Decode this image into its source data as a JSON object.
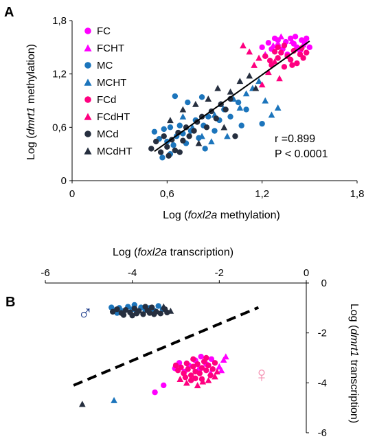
{
  "chart_data": [
    {
      "panel_label": "A",
      "type": "scatter",
      "xlabel": {
        "pre": "Log (",
        "italic": "foxl2a",
        "post": " methylation)"
      },
      "ylabel": {
        "pre": "Log (",
        "italic": "dmrt1",
        "post": " methylation)"
      },
      "xlim": [
        0,
        1.8
      ],
      "ylim": [
        0,
        1.8
      ],
      "xticks": [
        "0",
        "0,6",
        "1,2",
        "1,8"
      ],
      "yticks": [
        "0",
        "0,6",
        "1,2",
        "1,8"
      ],
      "grid": false,
      "legend_position": "top-left",
      "annotation": [
        "r =0.899",
        "P < 0.0001"
      ],
      "trendline": {
        "x": [
          0.52,
          1.5
        ],
        "y": [
          0.33,
          1.57
        ]
      },
      "series": [
        {
          "name": "FC",
          "marker": "circle",
          "color": "#FF00FF",
          "points": [
            [
              1.2,
              1.5
            ],
            [
              1.24,
              1.55
            ],
            [
              1.28,
              1.6
            ],
            [
              1.3,
              1.52
            ],
            [
              1.33,
              1.48
            ],
            [
              1.35,
              1.56
            ],
            [
              1.38,
              1.6
            ],
            [
              1.4,
              1.54
            ],
            [
              1.42,
              1.5
            ],
            [
              1.45,
              1.58
            ],
            [
              1.47,
              1.55
            ],
            [
              1.48,
              1.6
            ],
            [
              1.5,
              1.5
            ],
            [
              1.36,
              1.42
            ],
            [
              1.44,
              1.46
            ],
            [
              1.3,
              1.58
            ],
            [
              1.26,
              1.48
            ],
            [
              1.41,
              1.62
            ]
          ]
        },
        {
          "name": "FCHT",
          "marker": "triangle",
          "color": "#FF00FF",
          "points": [
            [
              1.22,
              1.42
            ],
            [
              1.27,
              1.52
            ],
            [
              1.32,
              1.62
            ],
            [
              1.39,
              1.57
            ],
            [
              1.46,
              1.53
            ]
          ]
        },
        {
          "name": "MC",
          "marker": "circle",
          "color": "#1C75BC",
          "points": [
            [
              0.52,
              0.55
            ],
            [
              0.55,
              0.47
            ],
            [
              0.58,
              0.58
            ],
            [
              0.6,
              0.44
            ],
            [
              0.62,
              0.6
            ],
            [
              0.64,
              0.4
            ],
            [
              0.66,
              0.5
            ],
            [
              0.68,
              0.62
            ],
            [
              0.7,
              0.53
            ],
            [
              0.72,
              0.42
            ],
            [
              0.75,
              0.56
            ],
            [
              0.78,
              0.68
            ],
            [
              0.8,
              0.48
            ],
            [
              0.83,
              0.62
            ],
            [
              0.86,
              0.72
            ],
            [
              0.9,
              0.56
            ],
            [
              0.93,
              0.68
            ],
            [
              0.96,
              0.8
            ],
            [
              1.0,
              0.72
            ],
            [
              1.05,
              0.88
            ],
            [
              1.1,
              0.8
            ],
            [
              0.57,
              0.26
            ],
            [
              0.62,
              0.3
            ],
            [
              0.73,
              0.88
            ],
            [
              0.65,
              0.95
            ],
            [
              0.82,
              0.94
            ],
            [
              0.84,
              0.36
            ],
            [
              1.07,
              0.62
            ],
            [
              1.2,
              0.64
            ]
          ]
        },
        {
          "name": "MCHT",
          "marker": "triangle",
          "color": "#1C75BC",
          "points": [
            [
              0.7,
              0.72
            ],
            [
              0.76,
              0.6
            ],
            [
              0.82,
              0.5
            ],
            [
              0.9,
              0.74
            ],
            [
              0.94,
              0.86
            ],
            [
              0.98,
              0.5
            ],
            [
              1.02,
              0.92
            ],
            [
              1.06,
              0.82
            ],
            [
              1.1,
              0.98
            ],
            [
              1.14,
              1.04
            ],
            [
              1.22,
              0.9
            ],
            [
              1.26,
              0.74
            ],
            [
              1.3,
              0.82
            ],
            [
              1.18,
              1.12
            ],
            [
              0.88,
              0.44
            ]
          ]
        },
        {
          "name": "FCd",
          "marker": "circle",
          "color": "#FF0080",
          "points": [
            [
              1.22,
              1.4
            ],
            [
              1.25,
              1.35
            ],
            [
              1.28,
              1.45
            ],
            [
              1.3,
              1.38
            ],
            [
              1.32,
              1.44
            ],
            [
              1.34,
              1.28
            ],
            [
              1.36,
              1.4
            ],
            [
              1.38,
              1.36
            ],
            [
              1.4,
              1.46
            ],
            [
              1.42,
              1.32
            ],
            [
              1.44,
              1.42
            ],
            [
              1.46,
              1.38
            ],
            [
              1.48,
              1.44
            ],
            [
              1.3,
              1.5
            ],
            [
              1.26,
              1.3
            ],
            [
              1.34,
              1.52
            ],
            [
              1.39,
              1.3
            ],
            [
              1.45,
              1.49
            ]
          ]
        },
        {
          "name": "FCdHT",
          "marker": "triangle",
          "color": "#FF0080",
          "points": [
            [
              1.08,
              1.52
            ],
            [
              1.12,
              1.45
            ],
            [
              1.15,
              1.3
            ],
            [
              1.18,
              1.38
            ],
            [
              1.24,
              1.22
            ],
            [
              1.28,
              1.34
            ],
            [
              1.31,
              1.15
            ],
            [
              1.2,
              1.08
            ]
          ]
        },
        {
          "name": "MCd",
          "marker": "circle",
          "color": "#262F3F",
          "points": [
            [
              0.5,
              0.36
            ],
            [
              0.53,
              0.44
            ],
            [
              0.56,
              0.32
            ],
            [
              0.58,
              0.5
            ],
            [
              0.6,
              0.38
            ],
            [
              0.63,
              0.46
            ],
            [
              0.65,
              0.34
            ],
            [
              0.67,
              0.54
            ],
            [
              0.7,
              0.45
            ],
            [
              0.72,
              0.6
            ],
            [
              0.74,
              0.5
            ],
            [
              0.77,
              0.56
            ],
            [
              0.79,
              0.66
            ],
            [
              0.82,
              0.72
            ],
            [
              0.85,
              0.6
            ],
            [
              0.88,
              0.78
            ],
            [
              0.91,
              0.7
            ],
            [
              0.94,
              0.86
            ],
            [
              0.97,
              0.8
            ],
            [
              1.0,
              0.92
            ],
            [
              0.68,
              0.32
            ],
            [
              0.61,
              0.28
            ],
            [
              1.03,
              0.5
            ]
          ]
        },
        {
          "name": "MCdHT",
          "marker": "triangle",
          "color": "#262F3F",
          "points": [
            [
              0.62,
              0.68
            ],
            [
              0.7,
              0.8
            ],
            [
              0.78,
              0.86
            ],
            [
              0.86,
              0.92
            ],
            [
              0.92,
              1.04
            ],
            [
              1.0,
              1.0
            ],
            [
              1.06,
              1.12
            ],
            [
              1.12,
              1.18
            ],
            [
              1.16,
              1.04
            ],
            [
              0.8,
              0.42
            ],
            [
              0.96,
              0.6
            ]
          ]
        }
      ]
    },
    {
      "panel_label": "B",
      "type": "scatter",
      "xlabel": {
        "pre": "Log (",
        "italic": "foxl2a",
        "post": " transcription)"
      },
      "ylabel": {
        "pre": "Log (",
        "italic": "dmrt1",
        "post": " transcription)"
      },
      "xlim": [
        -6,
        0
      ],
      "ylim": [
        -6,
        0
      ],
      "x_axis_position": "top",
      "y_axis_position": "right",
      "xticks": [
        "-6",
        "-4",
        "-2",
        "0"
      ],
      "yticks": [
        "0",
        "-2",
        "-4",
        "-6"
      ],
      "grid": false,
      "symbols": {
        "male": "♂",
        "female": "♀"
      },
      "separator_line": {
        "style": "dashed",
        "x": [
          -5.35,
          -1.1
        ],
        "y": [
          -4.1,
          -0.98
        ]
      },
      "series": [
        {
          "name": "MC",
          "marker": "circle",
          "color": "#1C75BC",
          "points": [
            [
              -4.48,
              -0.98
            ],
            [
              -4.4,
              -1.1
            ],
            [
              -4.3,
              -1.0
            ],
            [
              -4.2,
              -1.12
            ],
            [
              -4.1,
              -0.95
            ],
            [
              -4.0,
              -1.05
            ],
            [
              -3.9,
              -1.15
            ],
            [
              -3.8,
              -0.98
            ],
            [
              -3.7,
              -1.08
            ],
            [
              -3.6,
              -1.0
            ],
            [
              -3.5,
              -1.1
            ],
            [
              -3.4,
              -0.92
            ],
            [
              -3.3,
              -1.05
            ],
            [
              -4.35,
              -1.2
            ],
            [
              -3.95,
              -0.88
            ]
          ]
        },
        {
          "name": "MCd",
          "marker": "circle",
          "color": "#262F3F",
          "points": [
            [
              -4.45,
              -1.15
            ],
            [
              -4.35,
              -1.05
            ],
            [
              -4.25,
              -1.2
            ],
            [
              -4.15,
              -1.08
            ],
            [
              -4.05,
              -1.18
            ],
            [
              -3.95,
              -1.02
            ],
            [
              -3.85,
              -1.12
            ],
            [
              -3.75,
              -1.25
            ],
            [
              -3.65,
              -1.1
            ],
            [
              -3.55,
              -0.98
            ],
            [
              -3.45,
              -1.15
            ],
            [
              -3.35,
              -1.22
            ],
            [
              -3.25,
              -1.05
            ],
            [
              -3.2,
              -1.18
            ],
            [
              -4.2,
              -1.28
            ],
            [
              -3.7,
              -0.95
            ],
            [
              -3.5,
              -1.25
            ],
            [
              -4.0,
              -1.3
            ],
            [
              -3.9,
              -1.22
            ],
            [
              -3.6,
              -1.2
            ]
          ]
        },
        {
          "name": "MCdHT",
          "marker": "triangle",
          "color": "#262F3F",
          "points": [
            [
              -3.12,
              -1.12
            ],
            [
              -3.28,
              -0.95
            ],
            [
              -5.15,
              -4.85
            ]
          ]
        },
        {
          "name": "MCHT",
          "marker": "triangle",
          "color": "#1C75BC",
          "points": [
            [
              -4.42,
              -4.7
            ]
          ]
        },
        {
          "name": "FC",
          "marker": "circle",
          "color": "#FF00FF",
          "points": [
            [
              -3.48,
              -4.38
            ],
            [
              -3.28,
              -4.1
            ],
            [
              -3.02,
              -3.42
            ],
            [
              -2.92,
              -3.2
            ],
            [
              -2.8,
              -3.55
            ],
            [
              -2.7,
              -3.3
            ],
            [
              -2.55,
              -3.1
            ],
            [
              -2.45,
              -3.45
            ],
            [
              -2.3,
              -3.25
            ],
            [
              -2.18,
              -3.05
            ],
            [
              -2.42,
              -2.95
            ]
          ]
        },
        {
          "name": "FCHT",
          "marker": "triangle",
          "color": "#FF00FF",
          "points": [
            [
              -2.2,
              -3.6
            ],
            [
              -2.0,
              -3.35
            ],
            [
              -1.9,
              -3.08
            ],
            [
              -1.85,
              -2.95
            ],
            [
              -1.95,
              -3.5
            ]
          ]
        },
        {
          "name": "FCd",
          "marker": "circle",
          "color": "#FF0080",
          "points": [
            [
              -3.0,
              -3.3
            ],
            [
              -2.95,
              -3.5
            ],
            [
              -2.88,
              -3.38
            ],
            [
              -2.82,
              -3.62
            ],
            [
              -2.75,
              -3.22
            ],
            [
              -2.72,
              -3.45
            ],
            [
              -2.65,
              -3.7
            ],
            [
              -2.6,
              -3.35
            ],
            [
              -2.55,
              -3.55
            ],
            [
              -2.5,
              -3.25
            ],
            [
              -2.45,
              -3.62
            ],
            [
              -2.4,
              -3.4
            ],
            [
              -2.35,
              -3.15
            ],
            [
              -2.3,
              -3.5
            ],
            [
              -2.25,
              -3.3
            ],
            [
              -2.2,
              -3.7
            ],
            [
              -2.15,
              -3.45
            ],
            [
              -2.1,
              -3.2
            ],
            [
              -2.65,
              -3.9
            ],
            [
              -2.55,
              -3.82
            ],
            [
              -2.78,
              -3.78
            ],
            [
              -2.4,
              -3.85
            ],
            [
              -2.3,
              -3.0
            ],
            [
              -2.6,
              -3.05
            ]
          ]
        },
        {
          "name": "FCdHT",
          "marker": "triangle",
          "color": "#FF0080",
          "points": [
            [
              -2.9,
              -3.85
            ],
            [
              -2.75,
              -4.0
            ],
            [
              -2.5,
              -4.1
            ],
            [
              -2.38,
              -3.95
            ],
            [
              -2.25,
              -3.9
            ],
            [
              -2.1,
              -3.75
            ],
            [
              -2.05,
              -3.55
            ]
          ]
        }
      ]
    }
  ]
}
